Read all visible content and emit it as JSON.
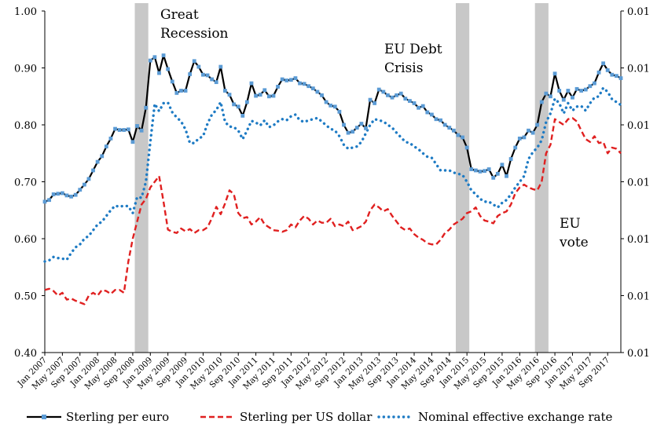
{
  "chart_data": {
    "type": "line",
    "title": "",
    "xlabel": "",
    "ylabel": "",
    "x_start": "Jan 2007",
    "x_end": "Dec 2017",
    "x_tick_labels": [
      "Jan 2007",
      "May 2007",
      "Sep 2007",
      "Jan 2008",
      "May 2008",
      "Sep 2008",
      "Jan 2009",
      "May 2009",
      "Sep 2009",
      "Jan 2010",
      "May 2010",
      "Sep 2010",
      "Jan 2011",
      "May 2011",
      "Sep 2011",
      "Jan 2012",
      "May 2012",
      "Sep 2012",
      "Jan 2013",
      "May 2013",
      "Sep 2013",
      "Jan 2014",
      "May 2014",
      "Sep 2014",
      "Jan 2015",
      "May 2015",
      "Sep 2015",
      "Jan 2016",
      "May 2016",
      "Sep 2016",
      "Jan 2017",
      "May 2017",
      "Sep 2017"
    ],
    "y_left_ticks": [
      "0.40",
      "0.50",
      "0.60",
      "0.70",
      "0.80",
      "0.90",
      "1.00"
    ],
    "y_right_ticks": [
      "0.01",
      "0.01",
      "0.01",
      "0.01",
      "0.01",
      "0.01",
      "0.01"
    ],
    "ylim": [
      0.4,
      1.0
    ],
    "legend_position": "bottom",
    "shaded_periods": [
      {
        "start": "Oct 2008",
        "end": "Dec 2008"
      },
      {
        "start": "Nov 2014",
        "end": "Jan 2015"
      },
      {
        "start": "May 2016",
        "end": "Jul 2016"
      }
    ],
    "annotations": [
      {
        "lines": [
          "Great",
          "Recession"
        ]
      },
      {
        "lines": [
          "EU Debt",
          "Crisis"
        ]
      },
      {
        "lines": [
          "EU",
          "vote"
        ]
      }
    ],
    "series": [
      {
        "name": "Sterling per euro",
        "color": "#000000",
        "marker_color": "#5b9bd5",
        "style": "solid-with-markers",
        "values": [
          0.665,
          0.668,
          0.678,
          0.679,
          0.68,
          0.676,
          0.674,
          0.677,
          0.686,
          0.695,
          0.705,
          0.72,
          0.735,
          0.745,
          0.762,
          0.776,
          0.793,
          0.791,
          0.791,
          0.792,
          0.77,
          0.798,
          0.79,
          0.83,
          0.913,
          0.919,
          0.891,
          0.922,
          0.898,
          0.876,
          0.856,
          0.86,
          0.86,
          0.889,
          0.912,
          0.902,
          0.888,
          0.887,
          0.88,
          0.875,
          0.902,
          0.86,
          0.853,
          0.836,
          0.832,
          0.816,
          0.84,
          0.873,
          0.851,
          0.853,
          0.861,
          0.85,
          0.851,
          0.867,
          0.88,
          0.878,
          0.879,
          0.882,
          0.873,
          0.872,
          0.868,
          0.864,
          0.858,
          0.852,
          0.84,
          0.834,
          0.832,
          0.823,
          0.8,
          0.786,
          0.788,
          0.795,
          0.802,
          0.794,
          0.844,
          0.838,
          0.862,
          0.858,
          0.852,
          0.848,
          0.852,
          0.855,
          0.846,
          0.842,
          0.838,
          0.83,
          0.833,
          0.822,
          0.818,
          0.81,
          0.808,
          0.8,
          0.795,
          0.79,
          0.782,
          0.778,
          0.76,
          0.722,
          0.72,
          0.718,
          0.719,
          0.722,
          0.707,
          0.714,
          0.73,
          0.71,
          0.74,
          0.76,
          0.776,
          0.778,
          0.79,
          0.786,
          0.8,
          0.84,
          0.855,
          0.85,
          0.89,
          0.86,
          0.844,
          0.86,
          0.848,
          0.863,
          0.86,
          0.862,
          0.868,
          0.873,
          0.892,
          0.908,
          0.896,
          0.888,
          0.886,
          0.882
        ]
      },
      {
        "name": "Sterling per US dollar",
        "color": "#e02020",
        "style": "dashed",
        "values": [
          0.51,
          0.512,
          0.508,
          0.5,
          0.505,
          0.493,
          0.495,
          0.491,
          0.488,
          0.485,
          0.5,
          0.505,
          0.5,
          0.51,
          0.508,
          0.503,
          0.51,
          0.51,
          0.505,
          0.56,
          0.6,
          0.63,
          0.66,
          0.67,
          0.69,
          0.7,
          0.71,
          0.665,
          0.616,
          0.612,
          0.61,
          0.618,
          0.613,
          0.617,
          0.61,
          0.615,
          0.615,
          0.62,
          0.636,
          0.656,
          0.643,
          0.662,
          0.685,
          0.678,
          0.645,
          0.636,
          0.638,
          0.625,
          0.63,
          0.638,
          0.625,
          0.62,
          0.615,
          0.614,
          0.612,
          0.615,
          0.625,
          0.62,
          0.632,
          0.64,
          0.635,
          0.625,
          0.632,
          0.628,
          0.628,
          0.635,
          0.622,
          0.625,
          0.622,
          0.63,
          0.615,
          0.618,
          0.622,
          0.63,
          0.65,
          0.66,
          0.655,
          0.648,
          0.652,
          0.64,
          0.63,
          0.62,
          0.615,
          0.618,
          0.608,
          0.602,
          0.598,
          0.592,
          0.59,
          0.59,
          0.598,
          0.61,
          0.616,
          0.625,
          0.63,
          0.635,
          0.645,
          0.648,
          0.655,
          0.64,
          0.632,
          0.63,
          0.627,
          0.64,
          0.645,
          0.648,
          0.66,
          0.68,
          0.69,
          0.695,
          0.69,
          0.687,
          0.685,
          0.7,
          0.75,
          0.765,
          0.81,
          0.805,
          0.8,
          0.81,
          0.812,
          0.806,
          0.79,
          0.775,
          0.77,
          0.78,
          0.768,
          0.77,
          0.75,
          0.76,
          0.758,
          0.75
        ]
      },
      {
        "name": "Nominal effective exchange rate",
        "color": "#1e7bc4",
        "style": "dotted",
        "values": [
          0.56,
          0.562,
          0.568,
          0.566,
          0.565,
          0.563,
          0.575,
          0.585,
          0.59,
          0.6,
          0.605,
          0.615,
          0.625,
          0.63,
          0.64,
          0.65,
          0.658,
          0.656,
          0.658,
          0.657,
          0.645,
          0.673,
          0.672,
          0.7,
          0.77,
          0.837,
          0.824,
          0.838,
          0.839,
          0.822,
          0.813,
          0.806,
          0.792,
          0.768,
          0.768,
          0.776,
          0.78,
          0.802,
          0.818,
          0.826,
          0.84,
          0.805,
          0.797,
          0.796,
          0.79,
          0.775,
          0.79,
          0.807,
          0.804,
          0.799,
          0.808,
          0.796,
          0.799,
          0.806,
          0.81,
          0.808,
          0.815,
          0.818,
          0.808,
          0.805,
          0.808,
          0.81,
          0.812,
          0.806,
          0.799,
          0.793,
          0.79,
          0.78,
          0.765,
          0.758,
          0.76,
          0.762,
          0.77,
          0.785,
          0.8,
          0.81,
          0.808,
          0.806,
          0.8,
          0.795,
          0.786,
          0.778,
          0.77,
          0.768,
          0.762,
          0.757,
          0.75,
          0.744,
          0.742,
          0.731,
          0.72,
          0.72,
          0.72,
          0.716,
          0.714,
          0.712,
          0.7,
          0.685,
          0.678,
          0.67,
          0.665,
          0.665,
          0.66,
          0.655,
          0.663,
          0.668,
          0.678,
          0.69,
          0.7,
          0.71,
          0.74,
          0.752,
          0.76,
          0.773,
          0.805,
          0.82,
          0.846,
          0.838,
          0.82,
          0.838,
          0.825,
          0.832,
          0.833,
          0.825,
          0.838,
          0.848,
          0.85,
          0.865,
          0.858,
          0.845,
          0.84,
          0.835
        ]
      }
    ]
  }
}
